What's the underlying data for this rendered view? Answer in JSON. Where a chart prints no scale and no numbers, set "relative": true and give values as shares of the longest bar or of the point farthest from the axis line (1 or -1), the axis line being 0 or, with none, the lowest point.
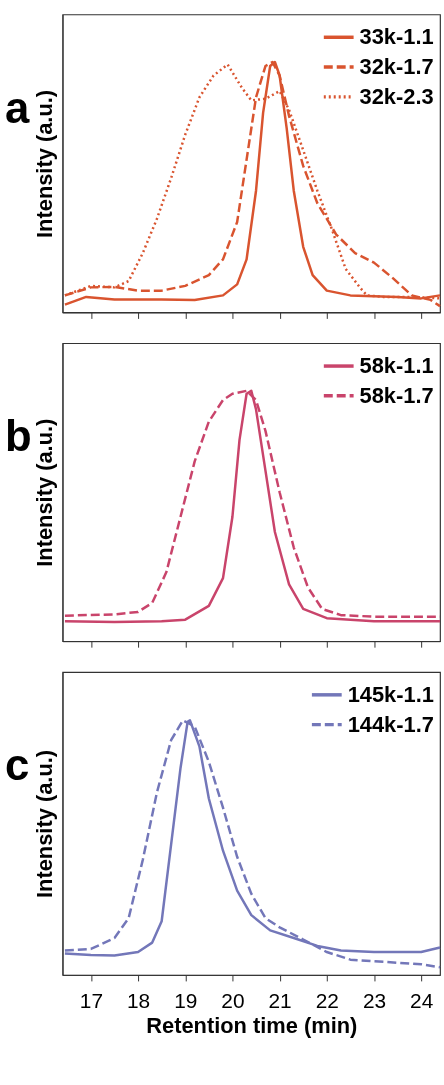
{
  "chart_data": [
    {
      "type": "line",
      "title": "a",
      "ylabel": "Intensity (a.u.)",
      "relative": true,
      "xlim": [
        16.4,
        24.4
      ],
      "xticks": [
        17,
        18,
        19,
        20,
        21,
        22,
        23,
        24
      ],
      "tick_labels": false,
      "legend": "top right",
      "grid": false,
      "marker": "none",
      "series": [
        {
          "name": "33k-1.1",
          "color": "#d9542f",
          "line_style": "solid",
          "x": [
            16.45,
            16.9,
            17.5,
            18.5,
            19.2,
            19.8,
            20.1,
            20.3,
            20.5,
            20.65,
            20.8,
            20.9,
            21.0,
            21.15,
            21.3,
            21.5,
            21.7,
            22.0,
            22.5,
            23.0,
            23.5,
            24.0,
            24.4
          ],
          "values": [
            0.031,
            0.062,
            0.052,
            0.052,
            0.05,
            0.068,
            0.112,
            0.212,
            0.486,
            0.797,
            0.984,
            1.0,
            0.946,
            0.735,
            0.486,
            0.262,
            0.149,
            0.087,
            0.068,
            0.065,
            0.062,
            0.056,
            0.068
          ]
        },
        {
          "name": "32k-1.7",
          "color": "#d9542f",
          "line_style": "dashed",
          "x": [
            16.45,
            17.0,
            17.5,
            18.0,
            18.5,
            19.0,
            19.5,
            19.8,
            20.1,
            20.3,
            20.5,
            20.7,
            20.85,
            21.0,
            21.2,
            21.5,
            21.8,
            22.2,
            22.6,
            23.0,
            23.4,
            23.8,
            24.2,
            24.4
          ],
          "values": [
            0.068,
            0.1,
            0.102,
            0.087,
            0.087,
            0.106,
            0.149,
            0.212,
            0.361,
            0.61,
            0.859,
            0.984,
            1.0,
            0.946,
            0.785,
            0.585,
            0.436,
            0.311,
            0.237,
            0.199,
            0.137,
            0.068,
            0.05,
            0.025
          ]
        },
        {
          "name": "32k-2.3",
          "color": "#d9542f",
          "line_style": "dotted",
          "x": [
            16.45,
            17.0,
            17.5,
            17.8,
            18.1,
            18.4,
            18.7,
            19.0,
            19.3,
            19.6,
            19.9,
            20.2,
            20.4,
            20.7,
            21.0,
            21.2,
            21.5,
            21.8,
            22.1,
            22.4,
            22.7,
            22.85,
            23.2,
            23.8,
            24.4
          ],
          "values": [
            0.068,
            0.106,
            0.1,
            0.125,
            0.237,
            0.374,
            0.536,
            0.71,
            0.859,
            0.946,
            0.99,
            0.897,
            0.847,
            0.853,
            0.884,
            0.809,
            0.648,
            0.486,
            0.336,
            0.174,
            0.1,
            0.068,
            0.062,
            0.062,
            0.056
          ]
        }
      ]
    },
    {
      "type": "line",
      "title": "b",
      "ylabel": "Intensity (a.u.)",
      "relative": true,
      "xlim": [
        16.4,
        24.4
      ],
      "xticks": [
        17,
        18,
        19,
        20,
        21,
        22,
        23,
        24
      ],
      "tick_labels": false,
      "legend": "top right",
      "grid": false,
      "marker": "none",
      "series": [
        {
          "name": "58k-1.1",
          "color": "#c9446b",
          "line_style": "solid",
          "x": [
            16.45,
            17.5,
            18.5,
            19.0,
            19.5,
            19.8,
            20.0,
            20.15,
            20.3,
            20.4,
            20.5,
            20.7,
            20.9,
            21.2,
            21.5,
            22.0,
            22.5,
            23.0,
            24.4
          ],
          "values": [
            0.08,
            0.077,
            0.08,
            0.086,
            0.141,
            0.252,
            0.497,
            0.804,
            0.988,
            1.0,
            0.926,
            0.681,
            0.436,
            0.227,
            0.129,
            0.092,
            0.086,
            0.08,
            0.08
          ]
        },
        {
          "name": "58k-1.7",
          "color": "#c9446b",
          "line_style": "dashed",
          "x": [
            16.45,
            17.5,
            18.0,
            18.3,
            18.6,
            18.9,
            19.2,
            19.5,
            19.8,
            20.0,
            20.3,
            20.5,
            20.7,
            21.0,
            21.3,
            21.6,
            21.9,
            22.3,
            23.0,
            24.4
          ],
          "values": [
            0.102,
            0.107,
            0.117,
            0.153,
            0.276,
            0.497,
            0.718,
            0.877,
            0.963,
            0.988,
            1.0,
            0.963,
            0.84,
            0.595,
            0.374,
            0.215,
            0.129,
            0.104,
            0.098,
            0.098
          ]
        }
      ]
    },
    {
      "type": "line",
      "title": "c",
      "xlabel": "Retention time (min)",
      "ylabel": "Intensity (a.u.)",
      "relative": true,
      "xlim": [
        16.4,
        24.4
      ],
      "xticks": [
        17,
        18,
        19,
        20,
        21,
        22,
        23,
        24
      ],
      "tick_labels": "x",
      "legend": "top right",
      "grid": false,
      "marker": "none",
      "series": [
        {
          "name": "145k-1.1",
          "color": "#7377b9",
          "line_style": "solid",
          "x": [
            16.45,
            17.0,
            17.5,
            18.0,
            18.3,
            18.5,
            18.7,
            18.9,
            19.05,
            19.1,
            19.3,
            19.5,
            19.8,
            20.1,
            20.4,
            20.8,
            21.3,
            21.8,
            22.3,
            23.0,
            24.0,
            24.4
          ],
          "values": [
            0.084,
            0.078,
            0.076,
            0.09,
            0.127,
            0.211,
            0.512,
            0.813,
            0.994,
            1.0,
            0.898,
            0.693,
            0.488,
            0.331,
            0.235,
            0.175,
            0.145,
            0.114,
            0.096,
            0.09,
            0.09,
            0.108
          ]
        },
        {
          "name": "144k-1.7",
          "color": "#7377b9",
          "line_style": "dashed",
          "x": [
            16.45,
            17.0,
            17.5,
            17.8,
            18.1,
            18.4,
            18.7,
            18.95,
            19.2,
            19.5,
            19.8,
            20.1,
            20.4,
            20.7,
            21.0,
            21.5,
            22.0,
            22.5,
            23.0,
            23.5,
            24.0,
            24.4
          ],
          "values": [
            0.096,
            0.102,
            0.145,
            0.223,
            0.452,
            0.717,
            0.922,
            1.0,
            0.976,
            0.837,
            0.657,
            0.464,
            0.319,
            0.223,
            0.187,
            0.139,
            0.09,
            0.06,
            0.054,
            0.048,
            0.042,
            0.03
          ]
        }
      ]
    }
  ]
}
